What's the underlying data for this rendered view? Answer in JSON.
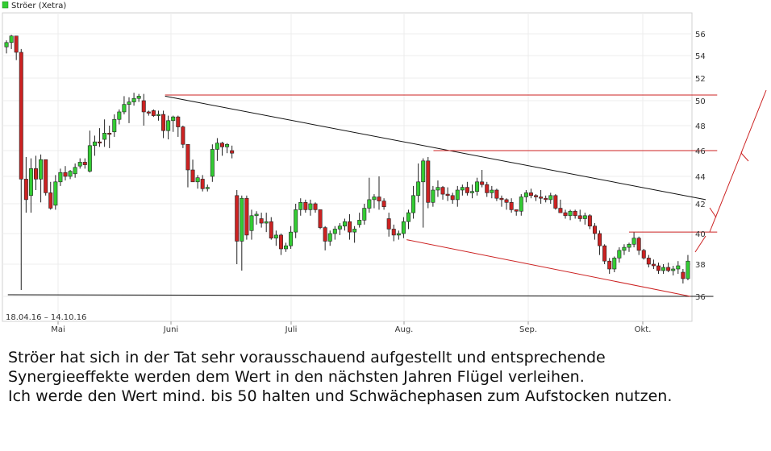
{
  "comment": {
    "lines": [
      "Ströer hat sich in der Tat sehr vorausschauend aufgestellt und entsprechende",
      "Synergieeffekte werden dem Wert in den nächsten Jahren Flügel verleihen.",
      "Ich werde den Wert mind. bis 50 halten und Schwächephasen zum Aufstocken nutzen."
    ]
  },
  "chart_data": {
    "type": "candlestick",
    "legend": {
      "label": "Ströer (Xetra)",
      "color": "#33cc33",
      "position": "top-left"
    },
    "date_range_label": "18.04.16 – 14.10.16",
    "x_tick_labels": [
      "Mai",
      "Juni",
      "Juli",
      "Aug.",
      "Sep.",
      "Okt."
    ],
    "y_tick_labels": [
      "56",
      "54",
      "52",
      "50",
      "48",
      "46",
      "44",
      "42",
      "40",
      "38",
      "36"
    ],
    "yaxis_side": "right",
    "grid": true,
    "colors": {
      "up": "#33cc33",
      "down": "#cc2222",
      "wick": "#222222",
      "trend_black": "#111111",
      "trend_red": "#cc2222"
    },
    "ohlc": [
      [
        54.8,
        55.4,
        54.2,
        55.2
      ],
      [
        55.2,
        55.9,
        54.6,
        55.8
      ],
      [
        55.8,
        55.8,
        53.6,
        54.3
      ],
      [
        54.3,
        54.6,
        36.4,
        43.8
      ],
      [
        43.8,
        45.5,
        41.4,
        42.3
      ],
      [
        42.6,
        45.4,
        41.4,
        44.6
      ],
      [
        44.6,
        45.6,
        43.0,
        43.8
      ],
      [
        43.8,
        45.7,
        42.1,
        45.3
      ],
      [
        45.3,
        45.3,
        42.6,
        42.8
      ],
      [
        42.8,
        43.6,
        41.6,
        41.7
      ],
      [
        41.9,
        44.1,
        41.6,
        43.6
      ],
      [
        43.6,
        44.6,
        43.3,
        44.3
      ],
      [
        44.3,
        44.8,
        43.7,
        44.0
      ],
      [
        44.0,
        44.5,
        43.8,
        44.4
      ],
      [
        44.2,
        45.0,
        43.9,
        44.7
      ],
      [
        44.8,
        45.4,
        44.6,
        45.1
      ],
      [
        45.1,
        45.4,
        44.6,
        44.9
      ],
      [
        44.4,
        47.6,
        44.3,
        46.4
      ],
      [
        46.4,
        47.2,
        45.6,
        46.7
      ],
      [
        46.7,
        47.8,
        46.3,
        46.6
      ],
      [
        46.9,
        48.5,
        46.3,
        47.4
      ],
      [
        47.4,
        48.0,
        46.2,
        47.3
      ],
      [
        47.5,
        48.9,
        47.1,
        48.5
      ],
      [
        48.5,
        49.3,
        48.1,
        49.1
      ],
      [
        49.1,
        50.4,
        48.9,
        49.7
      ],
      [
        49.7,
        50.3,
        48.2,
        49.9
      ],
      [
        49.9,
        50.7,
        49.6,
        50.2
      ],
      [
        50.2,
        50.6,
        49.9,
        50.4
      ],
      [
        50.0,
        50.6,
        48.0,
        49.1
      ],
      [
        49.1,
        49.2,
        48.8,
        49.0
      ],
      [
        49.2,
        49.3,
        48.7,
        48.8
      ],
      [
        48.8,
        49.2,
        48.4,
        48.9
      ],
      [
        48.9,
        49.2,
        47.0,
        47.6
      ],
      [
        47.6,
        48.8,
        46.9,
        48.4
      ],
      [
        48.4,
        48.8,
        47.5,
        48.7
      ],
      [
        48.7,
        48.8,
        47.1,
        47.9
      ],
      [
        47.9,
        48.0,
        46.2,
        46.5
      ],
      [
        46.5,
        46.5,
        43.2,
        44.5
      ],
      [
        44.5,
        45.3,
        43.6,
        43.6
      ],
      [
        43.6,
        44.1,
        43.1,
        43.9
      ],
      [
        43.8,
        44.1,
        42.9,
        43.1
      ],
      [
        43.1,
        43.4,
        42.9,
        43.2
      ],
      [
        44.0,
        46.5,
        43.6,
        46.1
      ],
      [
        46.1,
        47.0,
        45.2,
        46.6
      ],
      [
        46.6,
        46.7,
        45.6,
        46.3
      ],
      [
        46.3,
        46.6,
        45.8,
        46.5
      ],
      [
        46.0,
        46.4,
        45.4,
        45.8
      ],
      [
        42.6,
        43.0,
        38.0,
        39.5
      ],
      [
        39.5,
        42.6,
        37.6,
        42.4
      ],
      [
        42.4,
        42.6,
        39.6,
        39.9
      ],
      [
        40.2,
        41.6,
        39.6,
        41.2
      ],
      [
        41.2,
        41.5,
        40.6,
        41.3
      ],
      [
        41.0,
        41.4,
        40.4,
        40.7
      ],
      [
        40.7,
        41.4,
        40.1,
        40.8
      ],
      [
        40.8,
        41.1,
        39.6,
        39.7
      ],
      [
        39.7,
        40.2,
        39.2,
        39.9
      ],
      [
        39.9,
        40.0,
        38.6,
        39.0
      ],
      [
        39.0,
        39.4,
        38.8,
        39.2
      ],
      [
        39.2,
        40.5,
        39.0,
        40.1
      ],
      [
        40.1,
        42.0,
        39.7,
        41.6
      ],
      [
        41.6,
        42.4,
        41.2,
        42.1
      ],
      [
        42.1,
        42.3,
        41.4,
        41.6
      ],
      [
        41.6,
        42.3,
        41.2,
        42.0
      ],
      [
        42.0,
        42.1,
        41.4,
        41.6
      ],
      [
        41.6,
        41.6,
        40.3,
        40.4
      ],
      [
        40.4,
        40.5,
        38.9,
        39.5
      ],
      [
        39.5,
        40.2,
        39.2,
        40.0
      ],
      [
        40.0,
        40.5,
        39.6,
        40.3
      ],
      [
        40.3,
        40.7,
        39.9,
        40.5
      ],
      [
        40.5,
        41.0,
        40.2,
        40.8
      ],
      [
        40.8,
        41.3,
        39.6,
        40.1
      ],
      [
        40.1,
        40.5,
        39.4,
        40.3
      ],
      [
        40.6,
        41.4,
        40.4,
        40.9
      ],
      [
        40.9,
        42.0,
        40.6,
        41.7
      ],
      [
        41.7,
        43.9,
        41.4,
        42.3
      ],
      [
        42.3,
        42.7,
        41.7,
        42.5
      ],
      [
        42.5,
        44.0,
        41.6,
        42.2
      ],
      [
        42.2,
        42.4,
        41.6,
        41.8
      ],
      [
        41.0,
        41.4,
        39.8,
        40.3
      ],
      [
        40.3,
        40.6,
        39.5,
        39.9
      ],
      [
        39.9,
        40.2,
        39.6,
        40.0
      ],
      [
        40.0,
        41.1,
        39.7,
        40.8
      ],
      [
        40.8,
        41.6,
        40.3,
        41.4
      ],
      [
        41.4,
        43.3,
        41.0,
        42.6
      ],
      [
        42.6,
        45.0,
        42.1,
        43.6
      ],
      [
        43.6,
        45.4,
        40.4,
        45.2
      ],
      [
        45.2,
        45.5,
        41.7,
        42.1
      ],
      [
        42.1,
        43.3,
        41.8,
        43.0
      ],
      [
        43.0,
        43.7,
        42.5,
        43.2
      ],
      [
        43.2,
        43.3,
        42.3,
        42.7
      ],
      [
        42.7,
        43.2,
        42.2,
        42.6
      ],
      [
        42.6,
        42.8,
        42.0,
        42.3
      ],
      [
        42.3,
        43.3,
        41.8,
        43.0
      ],
      [
        43.0,
        43.4,
        42.6,
        43.2
      ],
      [
        43.2,
        43.6,
        42.6,
        42.8
      ],
      [
        42.8,
        43.4,
        42.4,
        42.9
      ],
      [
        42.9,
        43.9,
        42.6,
        43.6
      ],
      [
        43.6,
        44.5,
        43.2,
        43.4
      ],
      [
        43.4,
        43.6,
        42.5,
        42.8
      ],
      [
        42.8,
        43.3,
        42.4,
        43.0
      ],
      [
        43.0,
        43.1,
        42.2,
        42.4
      ],
      [
        42.4,
        42.6,
        41.8,
        42.3
      ],
      [
        42.3,
        42.4,
        41.6,
        42.1
      ],
      [
        42.1,
        42.4,
        41.4,
        41.6
      ],
      [
        41.6,
        41.6,
        41.2,
        41.5
      ],
      [
        41.5,
        42.7,
        41.2,
        42.5
      ],
      [
        42.5,
        43.0,
        42.1,
        42.8
      ],
      [
        42.8,
        43.1,
        42.4,
        42.6
      ],
      [
        42.6,
        42.7,
        42.2,
        42.5
      ],
      [
        42.5,
        43.0,
        42.0,
        42.4
      ],
      [
        42.4,
        42.6,
        42.1,
        42.3
      ],
      [
        42.3,
        42.8,
        42.0,
        42.6
      ],
      [
        42.6,
        42.7,
        41.6,
        41.7
      ],
      [
        41.7,
        42.3,
        41.4,
        41.4
      ],
      [
        41.4,
        41.6,
        41.0,
        41.2
      ],
      [
        41.2,
        41.6,
        40.9,
        41.5
      ],
      [
        41.5,
        41.6,
        41.0,
        41.2
      ],
      [
        41.2,
        41.6,
        40.8,
        41.0
      ],
      [
        41.0,
        41.4,
        40.6,
        41.2
      ],
      [
        41.2,
        41.3,
        40.3,
        40.5
      ],
      [
        40.5,
        40.7,
        39.6,
        40.0
      ],
      [
        40.0,
        40.2,
        38.6,
        39.2
      ],
      [
        39.2,
        39.3,
        38.0,
        38.2
      ],
      [
        38.2,
        38.4,
        37.4,
        37.7
      ],
      [
        37.7,
        38.5,
        37.5,
        38.4
      ],
      [
        38.4,
        39.1,
        38.1,
        38.9
      ],
      [
        38.9,
        39.3,
        38.6,
        39.1
      ],
      [
        39.1,
        39.4,
        38.8,
        39.3
      ],
      [
        39.3,
        40.1,
        39.1,
        39.7
      ],
      [
        39.7,
        39.8,
        38.6,
        38.9
      ],
      [
        38.9,
        39.0,
        38.3,
        38.4
      ],
      [
        38.4,
        38.6,
        37.8,
        38.0
      ],
      [
        38.0,
        38.3,
        37.7,
        37.9
      ],
      [
        37.9,
        38.1,
        37.4,
        37.6
      ],
      [
        37.6,
        38.0,
        37.4,
        37.8
      ],
      [
        37.8,
        38.1,
        37.5,
        37.6
      ],
      [
        37.6,
        37.9,
        37.3,
        37.7
      ],
      [
        37.7,
        38.2,
        37.4,
        37.9
      ],
      [
        37.5,
        37.7,
        36.8,
        37.1
      ],
      [
        37.1,
        38.6,
        37.0,
        38.2
      ]
    ],
    "trend_lines": [
      {
        "color": "black",
        "from": {
          "date": "30.05.16",
          "value": 50.4
        },
        "to": {
          "date": "18.10.16",
          "value": 42.3
        }
      },
      {
        "color": "black",
        "from": {
          "date": "19.04.16",
          "value": 36.1
        },
        "to": {
          "date": "20.10.16",
          "value": 36.0
        }
      },
      {
        "color": "red",
        "from": {
          "date": "30.05.16",
          "value": 50.5
        },
        "to": {
          "date": "21.10.16",
          "value": 50.5
        }
      },
      {
        "color": "red",
        "from": {
          "date": "08.08.16",
          "value": 46.0
        },
        "to": {
          "date": "21.10.16",
          "value": 46.0
        }
      },
      {
        "color": "red",
        "from": {
          "date": "28.09.16",
          "value": 40.1
        },
        "to": {
          "date": "21.10.16",
          "value": 40.1
        }
      },
      {
        "color": "red",
        "from": {
          "date": "01.08.16",
          "value": 39.6
        },
        "to": {
          "date": "14.10.16",
          "value": 36.0
        }
      }
    ]
  }
}
